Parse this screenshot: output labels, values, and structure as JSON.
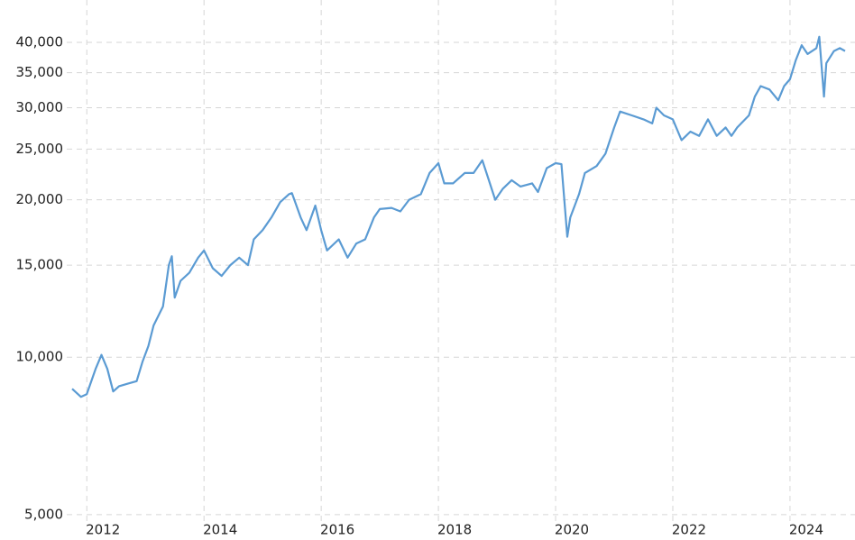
{
  "chart_data": {
    "type": "line",
    "x": [
      2011.75,
      2011.9,
      2012.0,
      2012.15,
      2012.25,
      2012.35,
      2012.45,
      2012.55,
      2012.7,
      2012.85,
      2012.95,
      2013.05,
      2013.14,
      2013.3,
      2013.4,
      2013.45,
      2013.5,
      2013.6,
      2013.75,
      2013.9,
      2014.0,
      2014.15,
      2014.3,
      2014.45,
      2014.6,
      2014.75,
      2014.85,
      2015.0,
      2015.15,
      2015.3,
      2015.45,
      2015.5,
      2015.65,
      2015.75,
      2015.9,
      2016.0,
      2016.1,
      2016.3,
      2016.45,
      2016.6,
      2016.75,
      2016.9,
      2017.0,
      2017.2,
      2017.35,
      2017.5,
      2017.7,
      2017.85,
      2018.0,
      2018.1,
      2018.25,
      2018.45,
      2018.6,
      2018.75,
      2018.85,
      2018.97,
      2019.1,
      2019.25,
      2019.4,
      2019.6,
      2019.7,
      2019.85,
      2020.0,
      2020.1,
      2020.2,
      2020.25,
      2020.4,
      2020.5,
      2020.7,
      2020.85,
      2021.0,
      2021.1,
      2021.3,
      2021.5,
      2021.65,
      2021.72,
      2021.85,
      2022.0,
      2022.15,
      2022.3,
      2022.45,
      2022.6,
      2022.75,
      2022.9,
      2023.0,
      2023.1,
      2023.3,
      2023.4,
      2023.5,
      2023.65,
      2023.8,
      2023.9,
      2024.0,
      2024.1,
      2024.2,
      2024.3,
      2024.45,
      2024.5,
      2024.58,
      2024.62,
      2024.75,
      2024.85,
      2024.94
    ],
    "values": [
      8700,
      8400,
      8500,
      9500,
      10100,
      9500,
      8600,
      8800,
      8900,
      9000,
      9800,
      10500,
      11500,
      12500,
      15000,
      15600,
      13000,
      14000,
      14500,
      15500,
      16000,
      14800,
      14300,
      15000,
      15500,
      15000,
      16800,
      17500,
      18500,
      19800,
      20500,
      20600,
      18500,
      17500,
      19500,
      17500,
      16000,
      16800,
      15500,
      16500,
      16800,
      18500,
      19200,
      19300,
      19000,
      20000,
      20500,
      22500,
      23500,
      21500,
      21500,
      22500,
      22500,
      23800,
      22000,
      20000,
      21000,
      21800,
      21200,
      21500,
      20700,
      23000,
      23500,
      23400,
      17000,
      18500,
      20500,
      22500,
      23200,
      24500,
      27500,
      29500,
      29000,
      28500,
      28000,
      30000,
      29000,
      28500,
      26000,
      27000,
      26500,
      28500,
      26500,
      27500,
      26500,
      27500,
      29000,
      31500,
      33000,
      32500,
      31000,
      33000,
      34000,
      37000,
      39500,
      38000,
      39000,
      41000,
      31500,
      36500,
      38500,
      39000,
      38500
    ],
    "color": "#5b9bd3",
    "xlim": [
      2011.75,
      2024.94
    ],
    "xticks": [
      2012,
      2014,
      2016,
      2018,
      2020,
      2022,
      2024
    ],
    "ylim": [
      4860,
      45600
    ],
    "yticks": [
      {
        "value": 5000,
        "label": "5,000"
      },
      {
        "value": 10000,
        "label": "10,000"
      },
      {
        "value": 15000,
        "label": "15,000"
      },
      {
        "value": 20000,
        "label": "20,000"
      },
      {
        "value": 25000,
        "label": "25,000"
      },
      {
        "value": 30000,
        "label": "30,000"
      },
      {
        "value": 35000,
        "label": "35,000"
      },
      {
        "value": 40000,
        "label": "40,000"
      }
    ],
    "log_y": true,
    "grid": true
  }
}
